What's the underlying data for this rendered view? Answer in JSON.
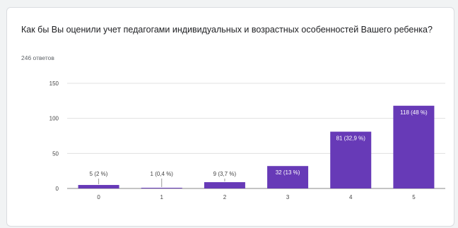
{
  "question": {
    "title": "Как бы Вы оценили учет педагогами индивидуальных и возрастных особенностей Вашего ребенка?",
    "response_count": "246 ответов"
  },
  "chart_data": {
    "type": "bar",
    "categories": [
      "0",
      "1",
      "2",
      "3",
      "4",
      "5"
    ],
    "values": [
      5,
      1,
      9,
      32,
      81,
      118
    ],
    "data_labels": [
      "5 (2 %)",
      "1 (0,4 %)",
      "9 (3,7 %)",
      "32 (13 %)",
      "81 (32,9 %)",
      "118 (48 %)"
    ],
    "yticks": [
      "0",
      "50",
      "100",
      "150"
    ],
    "ylim": [
      0,
      150
    ],
    "grid": true,
    "legend": "none",
    "bar_color": "#673ab7"
  }
}
